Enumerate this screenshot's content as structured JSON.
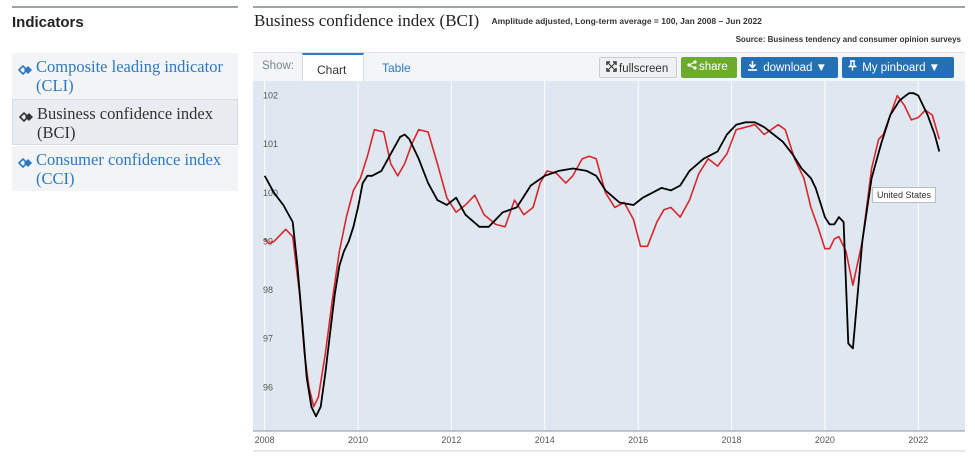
{
  "sidebar": {
    "title": "Indicators",
    "items": [
      {
        "label": "Composite leading indicator (CLI)",
        "icon": "double-chevron-right-icon",
        "active": false
      },
      {
        "label": "Business confidence index (BCI)",
        "icon": "double-chevron-right-icon",
        "active": true
      },
      {
        "label": "Consumer confidence index (CCI)",
        "icon": "double-chevron-right-icon",
        "active": false
      }
    ]
  },
  "header": {
    "title": "Business confidence index (BCI)",
    "subtitle": "Amplitude adjusted, Long-term average = 100, Jan 2008 – Jun 2022",
    "source": "Source: Business tendency and consumer opinion surveys"
  },
  "toolbar": {
    "show_label": "Show:",
    "tabs": [
      {
        "label": "Chart",
        "active": true
      },
      {
        "label": "Table",
        "active": false
      }
    ],
    "fullscreen_label": "fullscreen",
    "share_label": "share",
    "download_label": "download ▼",
    "pinboard_label": "My pinboard ▼"
  },
  "colors": {
    "accent_blue": "#2e79c0",
    "button_blue": "#2470b4",
    "share_green": "#6dab2f",
    "chart_bg": "#dfe8f1",
    "series_black": "#000000",
    "series_red": "#d9252b"
  },
  "tooltip": {
    "label": "United States"
  },
  "chart_data": {
    "type": "line",
    "xlim": [
      2007.75,
      2023.0
    ],
    "ylim": [
      95.1,
      102.3
    ],
    "yticks": [
      96,
      97,
      98,
      99,
      100,
      101,
      102
    ],
    "xticks": [
      2008,
      2010,
      2012,
      2014,
      2016,
      2018,
      2020,
      2022
    ],
    "grid": "vertical",
    "series": [
      {
        "name": "United States",
        "color": "#000000",
        "x": [
          2008.0,
          2008.2,
          2008.4,
          2008.6,
          2008.7,
          2008.8,
          2008.9,
          2009.0,
          2009.1,
          2009.2,
          2009.3,
          2009.4,
          2009.5,
          2009.6,
          2009.7,
          2009.8,
          2009.9,
          2010.0,
          2010.1,
          2010.2,
          2010.3,
          2010.5,
          2010.7,
          2010.9,
          2011.0,
          2011.1,
          2011.3,
          2011.5,
          2011.7,
          2011.9,
          2012.1,
          2012.3,
          2012.6,
          2012.8,
          2013.1,
          2013.4,
          2013.7,
          2014.0,
          2014.3,
          2014.6,
          2014.9,
          2015.1,
          2015.3,
          2015.6,
          2015.9,
          2016.1,
          2016.3,
          2016.5,
          2016.7,
          2016.9,
          2017.1,
          2017.4,
          2017.7,
          2017.9,
          2018.1,
          2018.3,
          2018.5,
          2018.7,
          2018.9,
          2019.1,
          2019.3,
          2019.5,
          2019.7,
          2019.8,
          2019.9,
          2020.0,
          2020.1,
          2020.2,
          2020.3,
          2020.4,
          2020.5,
          2020.6,
          2020.8,
          2021.0,
          2021.2,
          2021.4,
          2021.6,
          2021.8,
          2021.9,
          2022.0,
          2022.2,
          2022.35,
          2022.45
        ],
        "y": [
          100.35,
          100.0,
          99.75,
          99.4,
          98.5,
          97.4,
          96.2,
          95.6,
          95.4,
          95.6,
          96.3,
          97.1,
          97.9,
          98.5,
          98.8,
          99.0,
          99.3,
          99.7,
          100.2,
          100.35,
          100.35,
          100.45,
          100.8,
          101.15,
          101.2,
          101.1,
          100.7,
          100.2,
          99.85,
          99.75,
          99.9,
          99.55,
          99.3,
          99.3,
          99.6,
          99.7,
          100.15,
          100.35,
          100.45,
          100.5,
          100.45,
          100.35,
          100.05,
          99.8,
          99.75,
          99.9,
          100.0,
          100.1,
          100.05,
          100.15,
          100.45,
          100.7,
          100.85,
          101.2,
          101.4,
          101.45,
          101.45,
          101.35,
          101.2,
          101.05,
          100.8,
          100.5,
          100.3,
          100.1,
          99.8,
          99.5,
          99.35,
          99.35,
          99.5,
          99.4,
          96.9,
          96.8,
          99.0,
          100.3,
          101.0,
          101.6,
          101.9,
          102.05,
          102.05,
          102.0,
          101.6,
          101.2,
          100.85
        ]
      },
      {
        "name": "",
        "color": "#d9252b",
        "x": [
          2008.0,
          2008.1,
          2008.2,
          2008.3,
          2008.45,
          2008.6,
          2008.75,
          2008.85,
          2008.95,
          2009.05,
          2009.15,
          2009.3,
          2009.45,
          2009.6,
          2009.75,
          2009.9,
          2010.05,
          2010.2,
          2010.35,
          2010.55,
          2010.7,
          2010.85,
          2011.0,
          2011.15,
          2011.3,
          2011.5,
          2011.7,
          2011.9,
          2012.1,
          2012.3,
          2012.5,
          2012.7,
          2012.95,
          2013.15,
          2013.35,
          2013.55,
          2013.75,
          2013.9,
          2014.05,
          2014.25,
          2014.45,
          2014.6,
          2014.8,
          2014.95,
          2015.1,
          2015.3,
          2015.5,
          2015.7,
          2015.9,
          2016.05,
          2016.2,
          2016.4,
          2016.55,
          2016.7,
          2016.9,
          2017.1,
          2017.3,
          2017.5,
          2017.7,
          2017.9,
          2018.1,
          2018.3,
          2018.5,
          2018.7,
          2018.85,
          2019.0,
          2019.15,
          2019.35,
          2019.55,
          2019.7,
          2019.85,
          2020.0,
          2020.1,
          2020.2,
          2020.3,
          2020.45,
          2020.6,
          2020.8,
          2021.0,
          2021.15,
          2021.25,
          2021.4,
          2021.55,
          2021.7,
          2021.85,
          2022.0,
          2022.15,
          2022.3,
          2022.45
        ],
        "y": [
          99.05,
          98.95,
          99.0,
          99.1,
          99.25,
          99.1,
          97.9,
          96.7,
          96.0,
          95.6,
          95.8,
          96.7,
          97.8,
          98.8,
          99.5,
          100.05,
          100.3,
          100.75,
          101.3,
          101.25,
          100.6,
          100.35,
          100.6,
          101.0,
          101.3,
          101.25,
          100.6,
          99.9,
          99.6,
          99.75,
          99.95,
          99.55,
          99.35,
          99.3,
          99.85,
          99.55,
          99.7,
          100.2,
          100.45,
          100.4,
          100.2,
          100.35,
          100.7,
          100.75,
          100.7,
          100.0,
          99.7,
          99.8,
          99.45,
          98.9,
          98.9,
          99.4,
          99.65,
          99.7,
          99.5,
          99.85,
          100.4,
          100.7,
          100.55,
          100.8,
          101.3,
          101.35,
          101.4,
          101.2,
          101.3,
          101.4,
          101.3,
          100.7,
          100.3,
          99.7,
          99.3,
          98.85,
          98.85,
          99.05,
          99.1,
          98.8,
          98.1,
          99.0,
          100.5,
          101.1,
          101.2,
          101.6,
          102.0,
          101.8,
          101.5,
          101.55,
          101.7,
          101.6,
          101.1
        ]
      }
    ]
  }
}
